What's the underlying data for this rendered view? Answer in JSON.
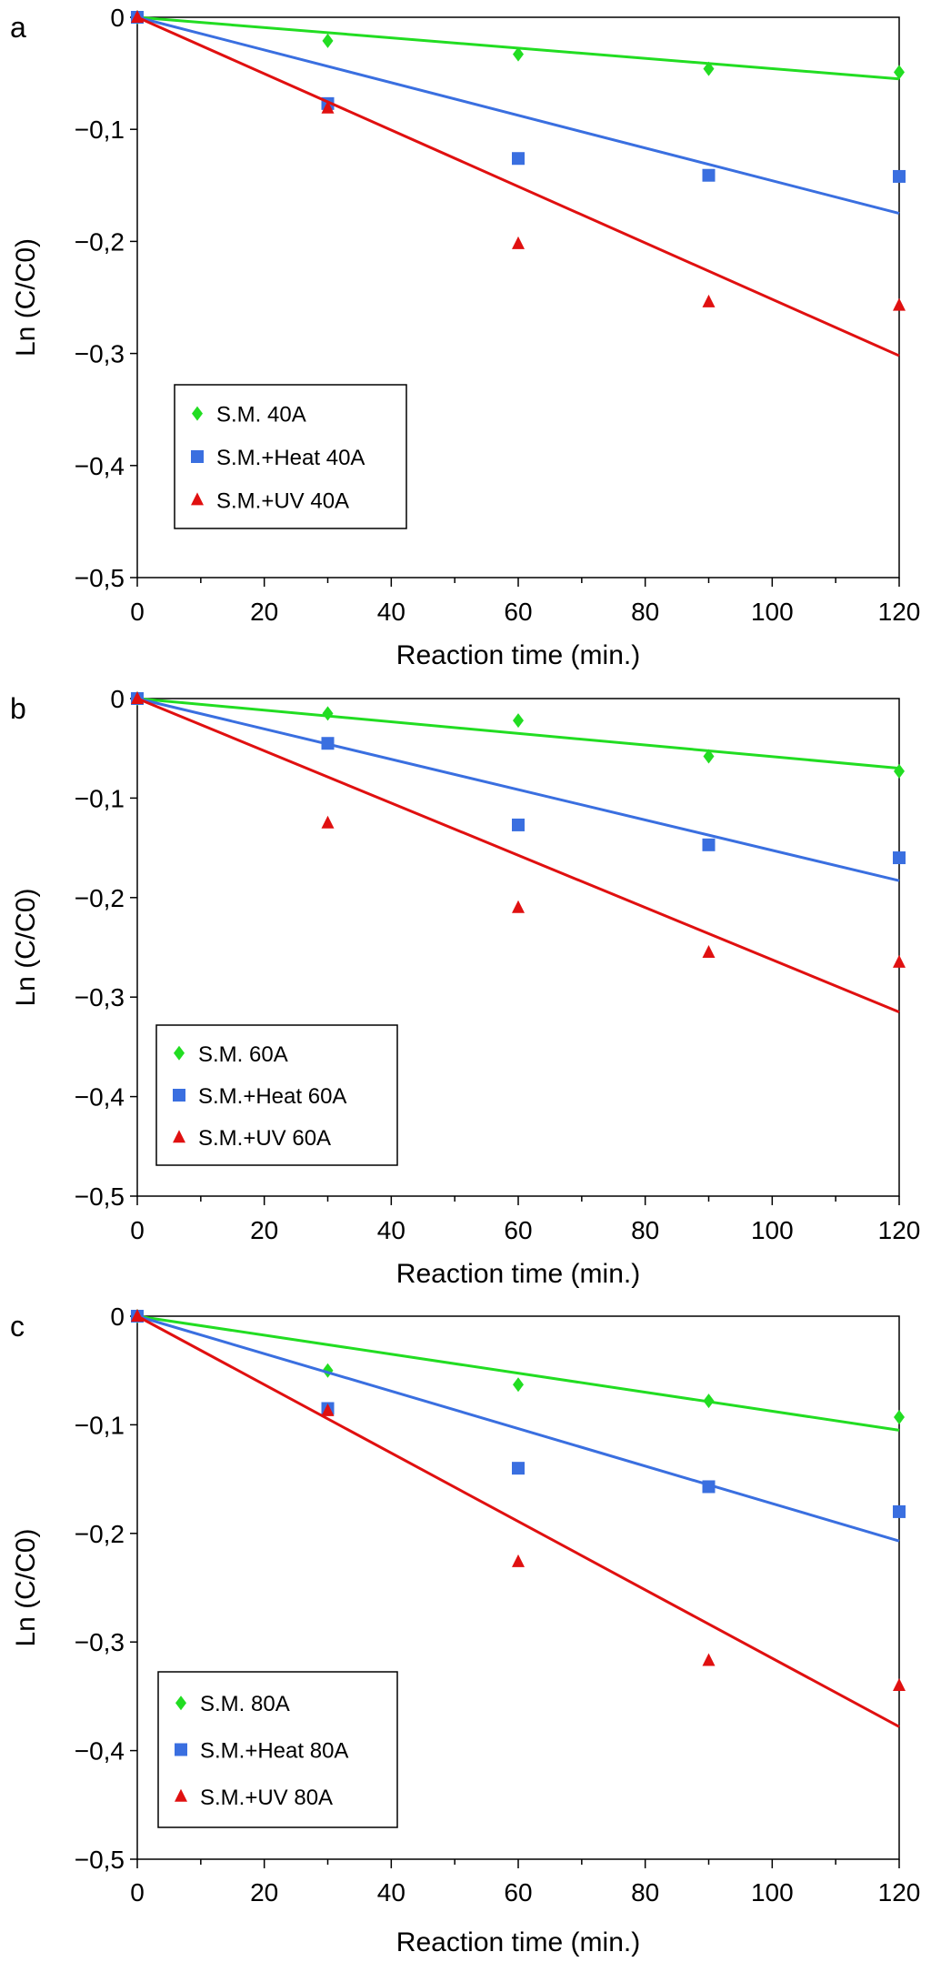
{
  "colors": {
    "green": "#22dd22",
    "blue": "#3a6fe0",
    "red": "#e01010"
  },
  "chart_data": [
    {
      "type": "scatter",
      "panel": "a",
      "xlabel": "Reaction time (min.)",
      "ylabel": "Ln (C/C0)",
      "xlim": [
        0,
        120
      ],
      "ylim": [
        -0.5,
        0
      ],
      "xticks": [
        "0",
        "20",
        "40",
        "60",
        "80",
        "100",
        "120"
      ],
      "yticks": [
        "0",
        "−0,1",
        "−0,2",
        "−0,3",
        "−0,4",
        "−0,5"
      ],
      "x": [
        0,
        30,
        60,
        90,
        120
      ],
      "series": [
        {
          "name": "S.M. 40A",
          "marker": "diamond",
          "color": "green",
          "values": [
            0,
            -0.021,
            -0.033,
            -0.046,
            -0.049
          ],
          "fit_end": -0.055
        },
        {
          "name": "S.M.+Heat 40A",
          "marker": "square",
          "color": "blue",
          "values": [
            0,
            -0.077,
            -0.126,
            -0.141,
            -0.142
          ],
          "fit_end": -0.175
        },
        {
          "name": "S.M.+UV 40A",
          "marker": "triangle",
          "color": "red",
          "values": [
            0,
            -0.081,
            -0.202,
            -0.254,
            -0.257
          ],
          "fit_end": -0.302
        }
      ],
      "legend": "bottom-left"
    },
    {
      "type": "scatter",
      "panel": "b",
      "xlabel": "Reaction time (min.)",
      "ylabel": "Ln (C/C0)",
      "xlim": [
        0,
        120
      ],
      "ylim": [
        -0.5,
        0
      ],
      "xticks": [
        "0",
        "20",
        "40",
        "60",
        "80",
        "100",
        "120"
      ],
      "yticks": [
        "0",
        "−0,1",
        "−0,2",
        "−0,3",
        "−0,4",
        "−0,5"
      ],
      "x": [
        0,
        30,
        60,
        90,
        120
      ],
      "series": [
        {
          "name": "S.M. 60A",
          "marker": "diamond",
          "color": "green",
          "values": [
            0,
            -0.015,
            -0.022,
            -0.058,
            -0.073
          ],
          "fit_end": -0.07
        },
        {
          "name": "S.M.+Heat 60A",
          "marker": "square",
          "color": "blue",
          "values": [
            0,
            -0.045,
            -0.127,
            -0.147,
            -0.16
          ],
          "fit_end": -0.183
        },
        {
          "name": "S.M.+UV 60A",
          "marker": "triangle",
          "color": "red",
          "values": [
            0,
            -0.125,
            -0.21,
            -0.255,
            -0.265
          ],
          "fit_end": -0.315
        }
      ],
      "legend": "bottom-left"
    },
    {
      "type": "scatter",
      "panel": "c",
      "xlabel": "Reaction time (min.)",
      "ylabel": "Ln (C/C0)",
      "xlim": [
        0,
        120
      ],
      "ylim": [
        -0.5,
        0
      ],
      "xticks": [
        "0",
        "20",
        "40",
        "60",
        "80",
        "100",
        "120"
      ],
      "yticks": [
        "0",
        "−0,1",
        "−0,2",
        "−0,3",
        "−0,4",
        "−0,5"
      ],
      "x": [
        0,
        30,
        60,
        90,
        120
      ],
      "series": [
        {
          "name": "S.M. 80A",
          "marker": "diamond",
          "color": "green",
          "values": [
            0,
            -0.05,
            -0.063,
            -0.078,
            -0.093
          ],
          "fit_end": -0.105
        },
        {
          "name": "S.M.+Heat 80A",
          "marker": "square",
          "color": "blue",
          "values": [
            0,
            -0.085,
            -0.14,
            -0.157,
            -0.18
          ],
          "fit_end": -0.207
        },
        {
          "name": "S.M.+UV 80A",
          "marker": "triangle",
          "color": "red",
          "values": [
            0,
            -0.087,
            -0.226,
            -0.317,
            -0.34
          ],
          "fit_end": -0.378
        }
      ],
      "legend": "bottom-left"
    }
  ]
}
